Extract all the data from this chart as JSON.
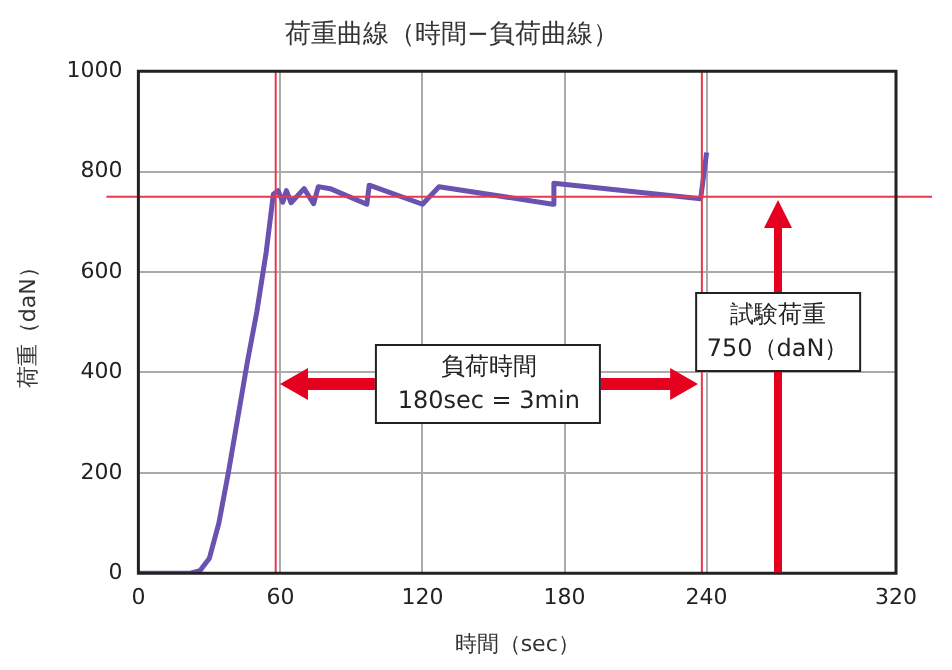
{
  "chart_data": {
    "type": "line",
    "title": "荷重曲線（時間−負荷曲線）",
    "xlabel": "時間（sec）",
    "ylabel": "荷重（daN）",
    "series": [
      {
        "color": "#6a52b0",
        "x": [
          0,
          22,
          26,
          30,
          34,
          38,
          42,
          46,
          50,
          54,
          57,
          59,
          61,
          62.5,
          64.5,
          70,
          74,
          76,
          81,
          96.5,
          97.5,
          120,
          127,
          175,
          175.5,
          237.5,
          240
        ],
        "values": [
          0,
          0,
          5,
          30,
          100,
          200,
          310,
          420,
          520,
          640,
          755,
          762,
          739,
          762,
          738,
          766,
          736,
          770,
          766,
          735,
          773,
          735,
          770,
          735,
          777,
          746,
          838
        ]
      }
    ],
    "xlim": [
      0,
      320
    ],
    "xticks": [
      0,
      60,
      120,
      180,
      240,
      320
    ],
    "ylim": [
      0,
      1000
    ],
    "yticks": [
      0,
      200,
      400,
      600,
      800,
      1000
    ],
    "grid": true,
    "legend": false,
    "marker": "none",
    "line_style": "solid",
    "ref_lines": [
      {
        "axis": "y",
        "value": 750,
        "color": "#e8384f"
      },
      {
        "axis": "x",
        "value": 58,
        "color": "#e8384f"
      },
      {
        "axis": "x",
        "value": 238,
        "color": "#e8384f"
      }
    ],
    "annotations": [
      "負荷時間\n180sec = 3min",
      "試験荷重\n750（daN）"
    ]
  }
}
